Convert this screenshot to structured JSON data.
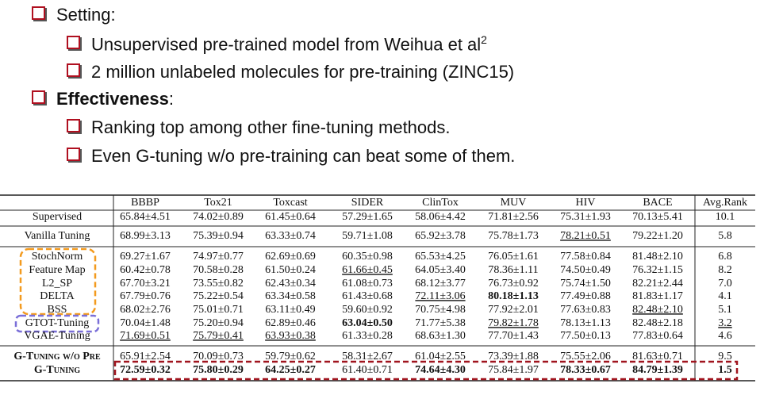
{
  "bullets": [
    {
      "level": 1,
      "text": "Setting:"
    },
    {
      "level": 2,
      "text": "Unsupervised pre-trained model from Weihua et al",
      "sup": "2"
    },
    {
      "level": 2,
      "text": "2 million unlabeled molecules for pre-training (ZINC15)"
    },
    {
      "level": 1,
      "bold_text": "Effectiveness",
      "text": ":"
    },
    {
      "level": 2,
      "text": "Ranking top among other fine-tuning methods."
    },
    {
      "level": 2,
      "text": "Even G-tuning w/o pre-training can beat some of them."
    }
  ],
  "table": {
    "header": [
      "BBBP",
      "Tox21",
      "Toxcast",
      "SIDER",
      "ClinTox",
      "MUV",
      "HIV",
      "BACE",
      "Avg.Rank"
    ],
    "rows": [
      {
        "method": "Supervised",
        "cells": [
          "65.84±4.51",
          "74.02±0.89",
          "61.45±0.64",
          "57.29±1.65",
          "58.06±4.42",
          "71.81±2.56",
          "75.31±1.93",
          "70.13±5.41",
          "10.1"
        ]
      },
      {
        "method": "Vanilla Tuning",
        "cells": [
          "68.99±3.13",
          "75.39±0.94",
          "63.33±0.74",
          "59.71±1.08",
          "65.92±3.78",
          "75.78±1.73",
          {
            "text": "78.21±0.51",
            "underline": true
          },
          "79.22±1.20",
          "5.8"
        ]
      },
      {
        "method": "StochNorm",
        "cells": [
          "69.27±1.67",
          "74.97±0.77",
          "62.69±0.69",
          "60.35±0.98",
          "65.53±4.25",
          "76.05±1.61",
          "77.58±0.84",
          "81.48±2.10",
          "6.8"
        ]
      },
      {
        "method": "Feature Map",
        "cells": [
          "60.42±0.78",
          "70.58±0.28",
          "61.50±0.24",
          {
            "text": "61.66±0.45",
            "underline": true
          },
          "64.05±3.40",
          "78.36±1.11",
          "74.50±0.49",
          "76.32±1.15",
          "8.2"
        ]
      },
      {
        "method": "L2_SP",
        "cells": [
          "67.70±3.21",
          "73.55±0.82",
          "62.43±0.34",
          "61.08±0.73",
          "68.12±3.77",
          "76.73±0.92",
          "75.74±1.50",
          "82.21±2.44",
          "7.0"
        ]
      },
      {
        "method": "DELTA",
        "cells": [
          "67.79±0.76",
          "75.22±0.54",
          "63.34±0.58",
          "61.43±0.68",
          {
            "text": "72.11±3.06",
            "underline": true
          },
          {
            "text": "80.18±1.13",
            "bold": true
          },
          "77.49±0.88",
          "81.83±1.17",
          "4.1"
        ]
      },
      {
        "method": "BSS",
        "cells": [
          "68.02±2.76",
          "75.01±0.71",
          "63.11±0.49",
          "59.60±0.92",
          "70.75±4.98",
          "77.92±2.01",
          "77.63±0.83",
          {
            "text": "82.48±2.10",
            "underline": true
          },
          "5.1"
        ]
      },
      {
        "method": "GTOT-Tuning",
        "cells": [
          "70.04±1.48",
          "75.20±0.94",
          "62.89±0.46",
          {
            "text": "63.04±0.50",
            "bold": true
          },
          "71.77±5.38",
          {
            "text": "79.82±1.78",
            "underline": true
          },
          "78.13±1.13",
          "82.48±2.18",
          {
            "text": "3.2",
            "underline": true
          }
        ]
      },
      {
        "method": "VGAE-Tuning",
        "cells": [
          {
            "text": "71.69±0.51",
            "underline": true
          },
          {
            "text": "75.79±0.41",
            "underline": true
          },
          {
            "text": "63.93±0.38",
            "underline": true
          },
          "61.33±0.28",
          "68.63±1.30",
          "77.70±1.43",
          "77.50±0.13",
          "77.83±0.64",
          "4.6"
        ]
      },
      {
        "method": "G-Tuning w/o Pre",
        "method_bold": true,
        "cells": [
          "65.91±2.54",
          "70.09±0.73",
          "59.79±0.62",
          "58.31±2.67",
          "61.04±2.55",
          "73.39±1.88",
          "75.55±2.06",
          "81.63±0.71",
          "9.5"
        ]
      },
      {
        "method": "G-Tuning",
        "method_bold": true,
        "cells": [
          {
            "text": "72.59±0.32",
            "bold": true
          },
          {
            "text": "75.80±0.29",
            "bold": true
          },
          {
            "text": "64.25±0.27",
            "bold": true
          },
          "61.40±0.71",
          {
            "text": "74.64±4.30",
            "bold": true
          },
          "75.84±1.97",
          {
            "text": "78.33±0.67",
            "bold": true
          },
          {
            "text": "84.79±1.39",
            "bold": true
          },
          {
            "text": "1.5",
            "bold": true
          }
        ]
      }
    ]
  }
}
